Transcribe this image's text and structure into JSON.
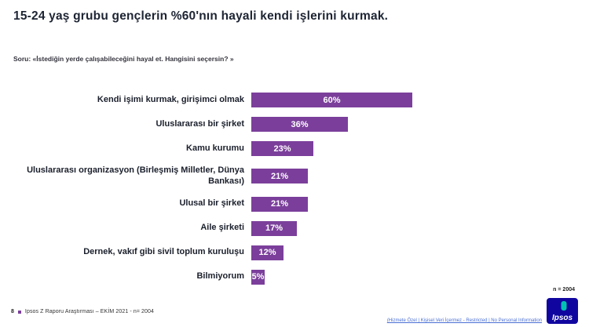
{
  "title": "15-24 yaş grubu gençlerin %60'nın hayali kendi işlerini kurmak.",
  "question": "Soru: «İstediğin yerde çalışabileceğini hayal et. Hangisini seçersin? »",
  "chart_data": {
    "type": "bar",
    "orientation": "horizontal",
    "title": "15-24 yaş grubu gençlerin %60'nın hayali kendi işlerini kurmak.",
    "categories": [
      "Kendi işimi kurmak, girişimci olmak",
      "Uluslararası bir şirket",
      "Kamu kurumu",
      "Uluslararası organizasyon (Birleşmiş Milletler, Dünya Bankası)",
      "Ulusal bir şirket",
      "Aile şirketi",
      "Dernek, vakıf gibi sivil toplum kuruluşu",
      "Bilmiyorum"
    ],
    "values": [
      60,
      36,
      23,
      21,
      21,
      17,
      12,
      5
    ],
    "value_labels": [
      "60%",
      "36%",
      "23%",
      "21%",
      "21%",
      "17%",
      "12%",
      "5%"
    ],
    "xlabel": "",
    "ylabel": "",
    "xlim": [
      0,
      70
    ],
    "grid": "off",
    "legend": "none",
    "bar_color": "#7b3f9b",
    "value_label_color": "#ffffff"
  },
  "footer": {
    "page_number": "8",
    "source": "Ipsos Z Raporu Araştırması – EKİM 2021 - n= 2004",
    "sample": "n = 2004",
    "confidential": "(Hizmete Özel | Kişisel Veri İçermez - Restricted | No Personal Information",
    "logo_text": "Ipsos",
    "logo_color": "#10069f",
    "logo_accent_color": "#00c2b2",
    "bullet_color": "#7b3f9b"
  }
}
